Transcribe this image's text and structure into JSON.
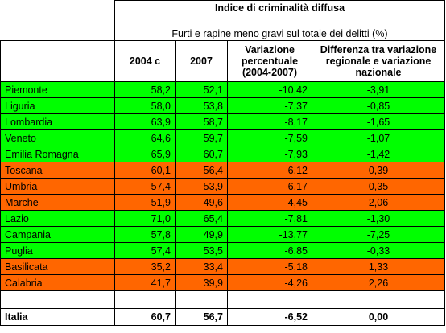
{
  "chart_data": {
    "type": "table",
    "title": "Indice di criminalità diffusa",
    "subtitle": "Furti e rapine meno gravi sul totale dei delitti  (%)",
    "columns": [
      "2004 c",
      "2007",
      "Variazione percentuale (2004-2007)",
      "Differenza tra variazione regionale e variazione nazionale"
    ],
    "rows": [
      {
        "region": "Piemonte",
        "v2004": "58,2",
        "v2007": "52,1",
        "var": "-10,42",
        "diff": "-3,91",
        "color": "green"
      },
      {
        "region": "Liguria",
        "v2004": "58,0",
        "v2007": "53,8",
        "var": "-7,37",
        "diff": "-0,85",
        "color": "green"
      },
      {
        "region": "Lombardia",
        "v2004": "63,9",
        "v2007": "58,7",
        "var": "-8,17",
        "diff": "-1,65",
        "color": "green"
      },
      {
        "region": "Veneto",
        "v2004": "64,6",
        "v2007": "59,7",
        "var": "-7,59",
        "diff": "-1,07",
        "color": "green"
      },
      {
        "region": "Emilia Romagna",
        "v2004": "65,9",
        "v2007": "60,7",
        "var": "-7,93",
        "diff": "-1,42",
        "color": "green"
      },
      {
        "region": "Toscana",
        "v2004": "60,1",
        "v2007": "56,4",
        "var": "-6,12",
        "diff": "0,39",
        "color": "orange"
      },
      {
        "region": "Umbria",
        "v2004": "57,4",
        "v2007": "53,9",
        "var": "-6,17",
        "diff": "0,35",
        "color": "orange"
      },
      {
        "region": "Marche",
        "v2004": "51,9",
        "v2007": "49,6",
        "var": "-4,45",
        "diff": "2,06",
        "color": "orange"
      },
      {
        "region": "Lazio",
        "v2004": "71,0",
        "v2007": "65,4",
        "var": "-7,81",
        "diff": "-1,30",
        "color": "green"
      },
      {
        "region": "Campania",
        "v2004": "57,8",
        "v2007": "49,9",
        "var": "-13,77",
        "diff": "-7,25",
        "color": "green"
      },
      {
        "region": "Puglia",
        "v2004": "57,4",
        "v2007": "53,5",
        "var": "-6,85",
        "diff": "-0,33",
        "color": "green"
      },
      {
        "region": "Basilicata",
        "v2004": "35,2",
        "v2007": "33,4",
        "var": "-5,18",
        "diff": "1,33",
        "color": "orange"
      },
      {
        "region": "Calabria",
        "v2004": "41,7",
        "v2007": "39,9",
        "var": "-4,26",
        "diff": "2,26",
        "color": "orange"
      }
    ],
    "total": {
      "region": "Italia",
      "v2004": "60,7",
      "v2007": "56,7",
      "var": "-6,52",
      "diff": "0,00"
    },
    "colors": {
      "green": "#00ff00",
      "orange": "#ff6600"
    }
  }
}
